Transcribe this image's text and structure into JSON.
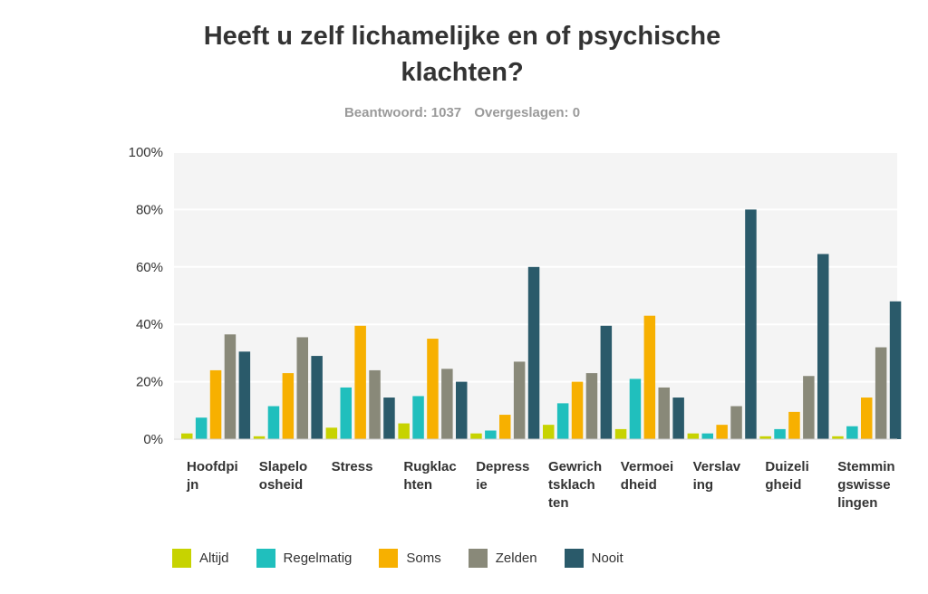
{
  "title": "Heeft u zelf lichamelijke en of psychische klachten?",
  "answered_label": "Beantwoord: 1037",
  "skipped_label": "Overgeslagen: 0",
  "chart_data": {
    "type": "bar",
    "title": "Heeft u zelf lichamelijke en of psychische klachten?",
    "categories": [
      "Hoofdpijn",
      "Slapeloosheid",
      "Stress",
      "Rugklachten",
      "Depressie",
      "Gewrichtsklachten",
      "Vermoeidheid",
      "Verslaving",
      "Duizeligheid",
      "Stemmingswisselingen"
    ],
    "category_label_lines": [
      [
        "Hoofdpi",
        "jn"
      ],
      [
        "Slapelo",
        "osheid"
      ],
      [
        "Stress"
      ],
      [
        "Rugklac",
        "hten"
      ],
      [
        "Depress",
        "ie"
      ],
      [
        "Gewrich",
        "tsklach",
        "ten"
      ],
      [
        "Vermoei",
        "dheid"
      ],
      [
        "Verslav",
        "ing"
      ],
      [
        "Duizeli",
        "gheid"
      ],
      [
        "Stemmin",
        "gswisse",
        "lingen"
      ]
    ],
    "series": [
      {
        "name": "Altijd",
        "color": "#c7d300",
        "values": [
          2,
          1,
          4,
          5.5,
          2,
          5,
          3.5,
          2,
          1,
          1
        ]
      },
      {
        "name": "Regelmatig",
        "color": "#20bfbd",
        "values": [
          7.5,
          11.5,
          18,
          15,
          3,
          12.5,
          21,
          2,
          3.5,
          4.5
        ]
      },
      {
        "name": "Soms",
        "color": "#f7b000",
        "values": [
          24,
          23,
          39.5,
          35,
          8.5,
          20,
          43,
          5,
          9.5,
          14.5
        ]
      },
      {
        "name": "Zelden",
        "color": "#898979",
        "values": [
          36.5,
          35.5,
          24,
          24.5,
          27,
          23,
          18,
          11.5,
          22,
          32
        ]
      },
      {
        "name": "Nooit",
        "color": "#2a5a6a",
        "values": [
          30.5,
          29,
          14.5,
          20,
          60,
          39.5,
          14.5,
          80,
          64.5,
          48
        ]
      }
    ],
    "y_ticks": [
      "0%",
      "20%",
      "40%",
      "60%",
      "80%",
      "100%"
    ],
    "ylim": [
      0,
      100
    ],
    "grid": true,
    "legend": "bottom"
  }
}
